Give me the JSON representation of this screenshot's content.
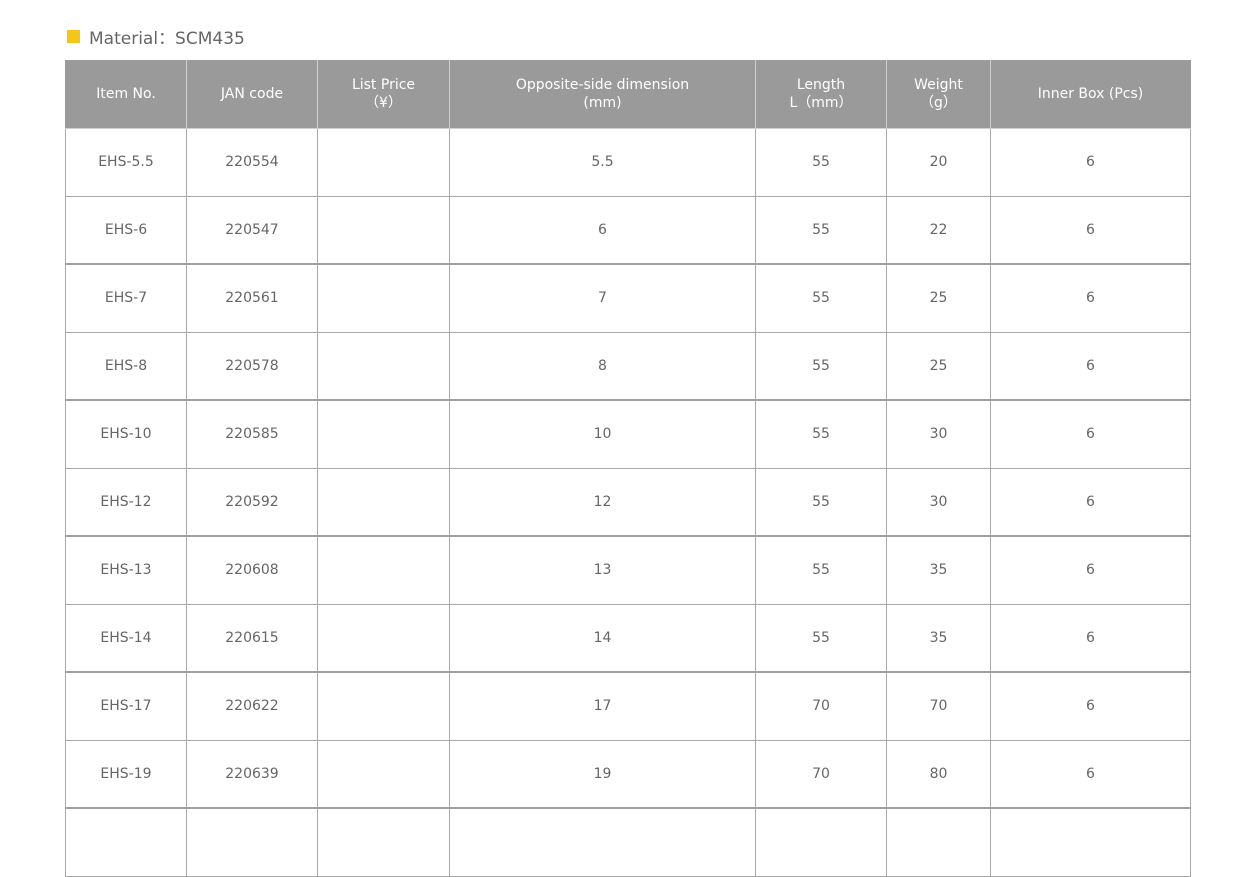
{
  "material_label": "Material：SCM435",
  "accent_color": "#f5c518",
  "headers": [
    {
      "l1": "Item No.",
      "l2": ""
    },
    {
      "l1": "JAN code",
      "l2": ""
    },
    {
      "l1": "List Price",
      "l2": "（¥）"
    },
    {
      "l1": "Opposite-side dimension",
      "l2": "(mm)"
    },
    {
      "l1": "Length",
      "l2": "L（mm）"
    },
    {
      "l1": "Weight",
      "l2": "（g）"
    },
    {
      "l1": "Inner Box (Pcs)",
      "l2": ""
    }
  ],
  "rows": [
    [
      "EHS-5.5",
      "220554",
      "",
      "5.5",
      "55",
      "20",
      "6"
    ],
    [
      "EHS-6",
      "220547",
      "",
      "6",
      "55",
      "22",
      "6"
    ],
    [
      "EHS-7",
      "220561",
      "",
      "7",
      "55",
      "25",
      "6"
    ],
    [
      "EHS-8",
      "220578",
      "",
      "8",
      "55",
      "25",
      "6"
    ],
    [
      "EHS-10",
      "220585",
      "",
      "10",
      "55",
      "30",
      "6"
    ],
    [
      "EHS-12",
      "220592",
      "",
      "12",
      "55",
      "30",
      "6"
    ],
    [
      "EHS-13",
      "220608",
      "",
      "13",
      "55",
      "35",
      "6"
    ],
    [
      "EHS-14",
      "220615",
      "",
      "14",
      "55",
      "35",
      "6"
    ],
    [
      "EHS-17",
      "220622",
      "",
      "17",
      "70",
      "70",
      "6"
    ],
    [
      "EHS-19",
      "220639",
      "",
      "19",
      "70",
      "80",
      "6"
    ]
  ]
}
